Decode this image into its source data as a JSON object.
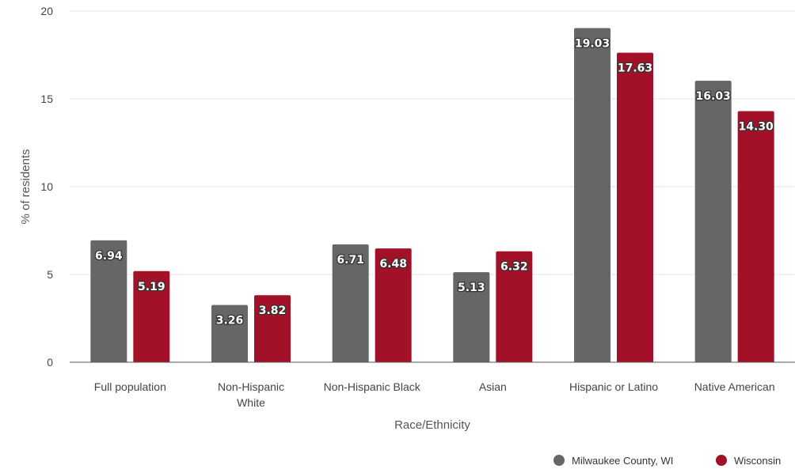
{
  "chart_data": {
    "type": "bar",
    "categories": [
      [
        "Full population"
      ],
      [
        "Non-Hispanic",
        "White"
      ],
      [
        "Non-Hispanic Black"
      ],
      [
        "Asian"
      ],
      [
        "Hispanic or Latino"
      ],
      [
        "Native American"
      ]
    ],
    "series": [
      {
        "name": "Milwaukee County, WI",
        "color": "#666666",
        "values": [
          6.94,
          3.26,
          6.71,
          5.13,
          19.03,
          16.03
        ],
        "labels": [
          "6.94",
          "3.26",
          "6.71",
          "5.13",
          "19.03",
          "16.03"
        ]
      },
      {
        "name": "Wisconsin",
        "color": "#a31129",
        "values": [
          5.19,
          3.82,
          6.48,
          6.32,
          17.63,
          14.3
        ],
        "labels": [
          "5.19",
          "3.82",
          "6.48",
          "6.32",
          "17.63",
          "14.30"
        ]
      }
    ],
    "xlabel": "Race/Ethnicity",
    "ylabel": "% of residents",
    "ylim": [
      0,
      20
    ],
    "yticks": [
      0,
      5,
      10,
      15,
      20
    ],
    "grid": true,
    "legend": "bottom-right"
  }
}
